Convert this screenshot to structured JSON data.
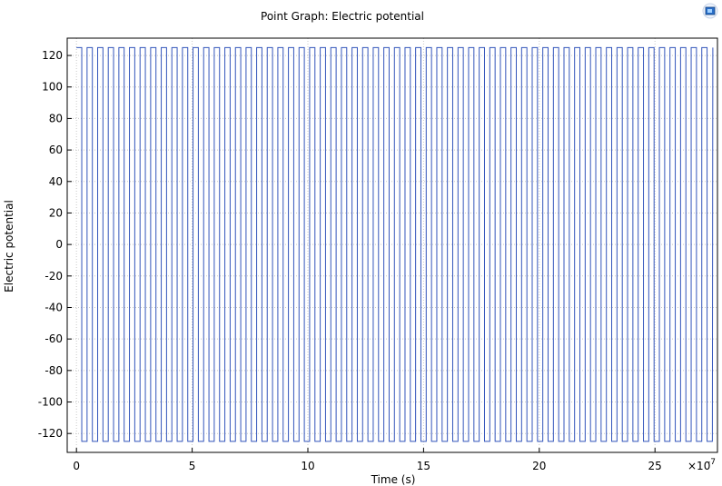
{
  "chart_data": {
    "type": "line",
    "title": "Point Graph: Electric potential",
    "xlabel": "Time (s)",
    "ylabel": "Electric potential",
    "x_multiplier_label": "×10",
    "x_multiplier_exponent": "-7",
    "xlim": [
      -0.4,
      27.7
    ],
    "ylim": [
      -132,
      131
    ],
    "x_ticks": [
      0,
      5,
      10,
      15,
      20,
      25
    ],
    "y_ticks": [
      120,
      100,
      80,
      60,
      40,
      20,
      0,
      -20,
      -40,
      -60,
      -80,
      -100,
      -120
    ],
    "grid": true,
    "legend": "none",
    "series": [
      {
        "waveform": "square",
        "high": 125,
        "low": -125,
        "start": 0,
        "end": 27.5,
        "period": 0.458,
        "duty_high": 0.5,
        "color": "#3355bb"
      }
    ]
  },
  "colors": {
    "plot_border": "#000000",
    "grid": "#c8c8c8",
    "line": "#3355bb"
  },
  "icons": {
    "top_right": "comsol-logo-icon"
  }
}
